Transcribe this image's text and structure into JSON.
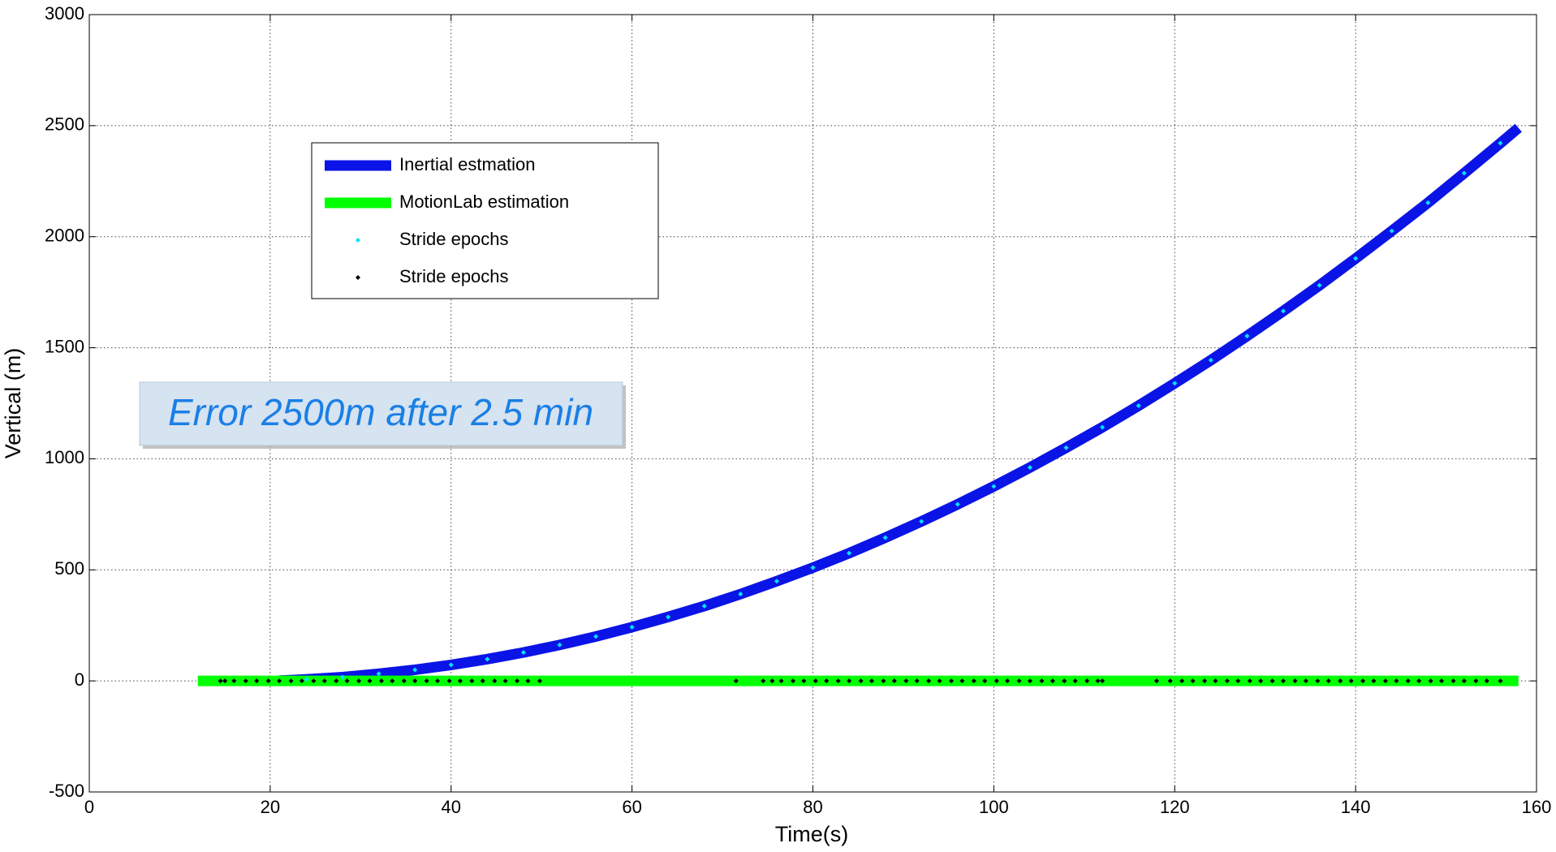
{
  "chart_data": {
    "type": "line",
    "xlabel": "Time(s)",
    "ylabel": "Vertical (m)",
    "xlim": [
      0,
      160
    ],
    "xticks": [
      0,
      20,
      40,
      60,
      80,
      100,
      120,
      140,
      160
    ],
    "ylim": [
      -500,
      3000
    ],
    "yticks": [
      -500,
      0,
      500,
      1000,
      1500,
      2000,
      2500,
      3000
    ],
    "grid": true,
    "legend": "upper left",
    "annotation": "Error 2500m after 2.5 min",
    "series": [
      {
        "name": "Inertial estmation",
        "color": "#0a14e6",
        "style": "line",
        "x": [
          21,
          24,
          28,
          32,
          36,
          40,
          44,
          48,
          52,
          56,
          60,
          64,
          68,
          72,
          76,
          80,
          84,
          88,
          92,
          96,
          100,
          104,
          108,
          112,
          116,
          120,
          124,
          128,
          132,
          136,
          140,
          144,
          148,
          152,
          156,
          158
        ],
        "values": [
          1,
          7,
          17,
          32,
          50,
          72,
          98,
          128,
          162,
          200,
          242,
          288,
          337,
          391,
          449,
          510,
          575,
          645,
          718,
          795,
          876,
          961,
          1050,
          1142,
          1239,
          1340,
          1444,
          1553,
          1665,
          1781,
          1902,
          2026,
          2153,
          2286,
          2421,
          2490
        ]
      },
      {
        "name": "MotionLab estimation",
        "color": "#00ff00",
        "style": "line",
        "x": [
          12,
          158
        ],
        "values": [
          0,
          0
        ]
      },
      {
        "name": "Stride epochs",
        "color": "#00e5ff",
        "style": "marker",
        "x": [
          24,
          28,
          32,
          36,
          40,
          44,
          48,
          52,
          56,
          60,
          64,
          68,
          72,
          76,
          80,
          84,
          88,
          92,
          96,
          100,
          104,
          108,
          112,
          116,
          120,
          124,
          128,
          132,
          136,
          140,
          144,
          148,
          152,
          156
        ],
        "values": [
          7,
          17,
          32,
          50,
          72,
          98,
          128,
          162,
          200,
          242,
          288,
          337,
          391,
          449,
          510,
          575,
          645,
          718,
          795,
          876,
          961,
          1050,
          1142,
          1239,
          1340,
          1444,
          1553,
          1665,
          1781,
          1902,
          2026,
          2153,
          2286,
          2421
        ]
      },
      {
        "name": "Stride epochs",
        "color": "#000000",
        "style": "marker",
        "x": [
          14.5,
          15,
          16,
          17.3,
          18.5,
          19.8,
          21,
          22.3,
          23.5,
          24.8,
          26,
          27.3,
          28.5,
          29.8,
          31,
          32.3,
          33.5,
          34.8,
          36,
          37.3,
          38.5,
          39.8,
          41,
          42.3,
          43.5,
          44.8,
          46,
          47.3,
          48.5,
          49.8,
          71.5,
          74.5,
          75.5,
          76.5,
          77.8,
          79,
          80.3,
          81.5,
          82.8,
          84,
          85.3,
          86.5,
          87.8,
          89,
          90.3,
          91.5,
          92.8,
          94,
          95.3,
          96.5,
          97.8,
          99,
          100.3,
          101.5,
          102.8,
          104,
          105.3,
          106.5,
          107.8,
          109,
          110.3,
          111.5,
          112,
          118,
          119.5,
          120.8,
          122,
          123.3,
          124.5,
          125.8,
          127,
          128.3,
          129.5,
          130.8,
          132,
          133.3,
          134.5,
          135.8,
          137,
          138.3,
          139.5,
          140.8,
          142,
          143.3,
          144.5,
          145.8,
          147,
          148.3,
          149.5,
          150.8,
          152,
          153.3,
          154.5,
          156
        ],
        "values": [
          0,
          0,
          0,
          0,
          0,
          0,
          0,
          0,
          0,
          0,
          0,
          0,
          0,
          0,
          0,
          0,
          0,
          0,
          0,
          0,
          0,
          0,
          0,
          0,
          0,
          0,
          0,
          0,
          0,
          0,
          0,
          0,
          0,
          0,
          0,
          0,
          0,
          0,
          0,
          0,
          0,
          0,
          0,
          0,
          0,
          0,
          0,
          0,
          0,
          0,
          0,
          0,
          0,
          0,
          0,
          0,
          0,
          0,
          0,
          0,
          0,
          0,
          0,
          0,
          0,
          0,
          0,
          0,
          0,
          0,
          0,
          0,
          0,
          0,
          0,
          0,
          0,
          0,
          0,
          0,
          0,
          0,
          0,
          0,
          0,
          0,
          0,
          0,
          0,
          0,
          0,
          0,
          0,
          0
        ]
      }
    ]
  }
}
